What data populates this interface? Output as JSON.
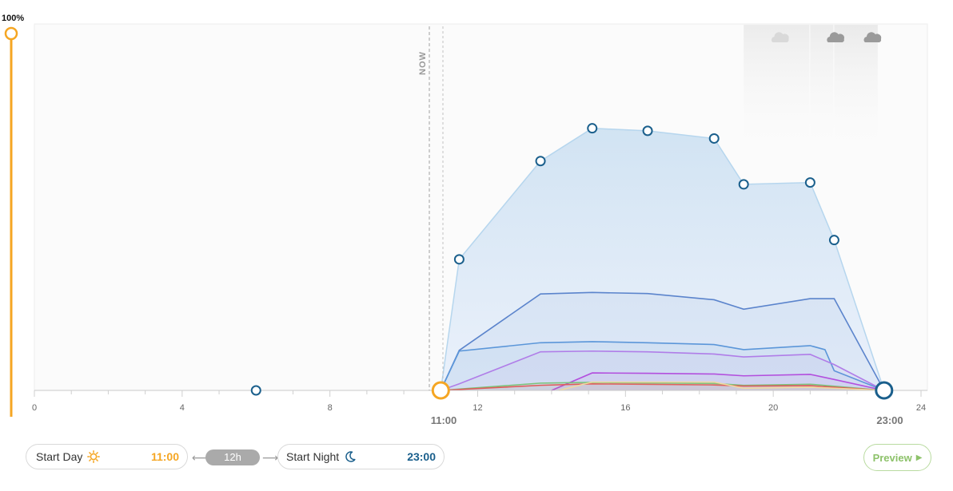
{
  "chart": {
    "y_top_label": "100%",
    "now_label": "NOW",
    "x_ticks": [
      "0",
      "4",
      "8",
      "12",
      "16",
      "20",
      "24"
    ],
    "day_marker": "11:00",
    "night_marker": "23:00"
  },
  "controls": {
    "start_day_label": "Start Day",
    "start_day_time": "11:00",
    "duration": "12h",
    "start_night_label": "Start Night",
    "start_night_time": "23:00",
    "preview_label": "Preview"
  },
  "icons": [
    "sun-icon",
    "moon-icon",
    "cloud-icon",
    "play-triangle-icon"
  ],
  "colors": {
    "day_accent": "#f5a623",
    "night_accent": "#1a5f8c",
    "preview_green": "#8dc26a"
  },
  "chart_data": {
    "type": "area",
    "x_unit": "hour",
    "xlim": [
      0,
      24
    ],
    "ylim": [
      0,
      100
    ],
    "main_series_points": [
      [
        11.5,
        36
      ],
      [
        13.7,
        63
      ],
      [
        15.1,
        72
      ],
      [
        16.6,
        71.3
      ],
      [
        18.4,
        69.2
      ],
      [
        19.2,
        56.6
      ],
      [
        21.0,
        57.1
      ],
      [
        21.65,
        41.3
      ],
      [
        23,
        0
      ]
    ],
    "band_series": [
      {
        "color": "#5b84cc",
        "points": [
          [
            11,
            0
          ],
          [
            11.5,
            11
          ],
          [
            13.7,
            26.5
          ],
          [
            15.1,
            26.9
          ],
          [
            16.6,
            26.6
          ],
          [
            18.4,
            24.9
          ],
          [
            19.2,
            22.3
          ],
          [
            21,
            25.2
          ],
          [
            21.65,
            25.2
          ],
          [
            23,
            0
          ]
        ]
      },
      {
        "color": "#5b96d9",
        "points": [
          [
            11,
            0
          ],
          [
            11.5,
            10.8
          ],
          [
            13.7,
            13.1
          ],
          [
            15.1,
            13.4
          ],
          [
            16.6,
            13.1
          ],
          [
            18.4,
            12.6
          ],
          [
            19.2,
            11.2
          ],
          [
            21,
            12.3
          ],
          [
            21.4,
            11.2
          ],
          [
            21.65,
            5.4
          ],
          [
            23,
            0
          ]
        ]
      },
      {
        "color": "#b07de8",
        "points": [
          [
            11,
            0
          ],
          [
            11.5,
            1.8
          ],
          [
            13.7,
            10.6
          ],
          [
            15.1,
            10.8
          ],
          [
            16.6,
            10.6
          ],
          [
            18.4,
            10
          ],
          [
            19.2,
            9.2
          ],
          [
            21,
            9.9
          ],
          [
            21.65,
            7.1
          ],
          [
            23,
            0
          ]
        ]
      },
      {
        "color": "#b34fde",
        "points": [
          [
            14.0,
            0
          ],
          [
            15.1,
            4.8
          ],
          [
            16.6,
            4.7
          ],
          [
            18.4,
            4.5
          ],
          [
            19.2,
            4
          ],
          [
            21,
            4.4
          ],
          [
            21.65,
            3
          ],
          [
            23,
            0
          ]
        ]
      },
      {
        "color": "#7cc27a",
        "points": [
          [
            11,
            0
          ],
          [
            13.7,
            2
          ],
          [
            15.1,
            2.2
          ],
          [
            18.4,
            1.9
          ],
          [
            19.2,
            1.4
          ],
          [
            21,
            1.7
          ],
          [
            23,
            0
          ]
        ]
      },
      {
        "color": "#e05a5a",
        "points": [
          [
            11,
            0
          ],
          [
            13.7,
            1.4
          ],
          [
            15.1,
            1.8
          ],
          [
            18.4,
            1.5
          ],
          [
            19.2,
            1.2
          ],
          [
            21,
            1.3
          ],
          [
            23,
            0
          ]
        ]
      },
      {
        "color": "#f0d9a0",
        "points": [
          [
            14.2,
            0
          ],
          [
            15.1,
            2.3
          ],
          [
            18.4,
            2.3
          ],
          [
            19.2,
            0.6
          ],
          [
            21,
            0.9
          ],
          [
            23,
            0
          ]
        ]
      }
    ],
    "extra_points": [
      [
        6,
        0
      ]
    ],
    "day_start": 11,
    "night_start": 23,
    "now_hour": 10.8,
    "cloud_markers": [
      {
        "hour": 20.2,
        "shade": "light"
      },
      {
        "hour": 21.7,
        "shade": "medium"
      },
      {
        "hour": 22.7,
        "shade": "medium"
      }
    ]
  }
}
